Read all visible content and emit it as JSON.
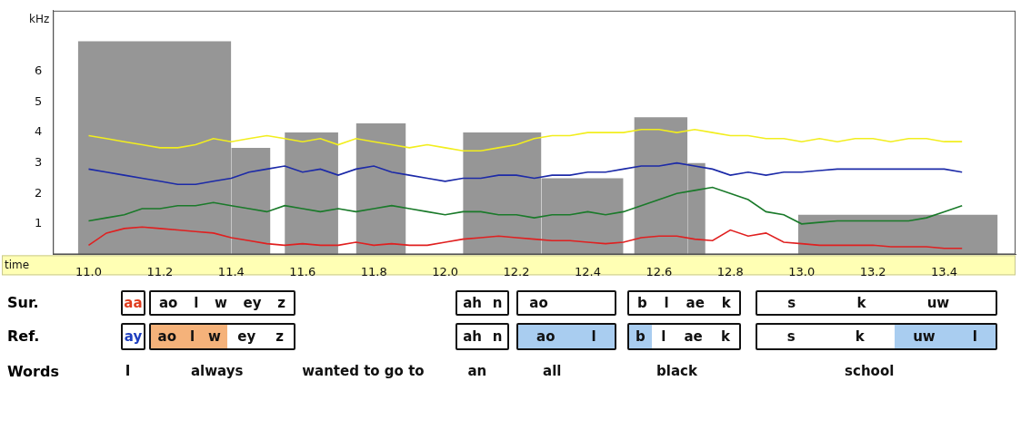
{
  "chart_data": {
    "type": "line",
    "y_label": "kHz",
    "x_label": "time",
    "xlim": [
      10.9,
      13.6
    ],
    "xticks": [
      {
        "value": 11.0,
        "label": "11.0"
      },
      11.2,
      11.4,
      11.6,
      11.8,
      {
        "value": 12.0,
        "label": "12.0"
      },
      12.2,
      12.4,
      12.6,
      12.8,
      {
        "value": 13.0,
        "label": "13.0"
      },
      13.2,
      13.4
    ],
    "ylim": [
      0,
      8
    ],
    "yticks": [
      1,
      2,
      3,
      4,
      5,
      6
    ],
    "grid": false,
    "x": [
      11.0,
      11.05,
      11.1,
      11.15,
      11.2,
      11.25,
      11.3,
      11.35,
      11.4,
      11.45,
      11.5,
      11.55,
      11.6,
      11.65,
      11.7,
      11.75,
      11.8,
      11.85,
      11.9,
      11.95,
      12.0,
      12.05,
      12.1,
      12.15,
      12.2,
      12.25,
      12.3,
      12.35,
      12.4,
      12.45,
      12.5,
      12.55,
      12.6,
      12.65,
      12.7,
      12.75,
      12.8,
      12.85,
      12.9,
      12.95,
      13.0,
      13.05,
      13.1,
      13.15,
      13.2,
      13.25,
      13.3,
      13.35,
      13.4,
      13.45
    ],
    "series": [
      {
        "color": "#e02020",
        "values": [
          0.3,
          0.7,
          0.85,
          0.9,
          0.85,
          0.8,
          0.75,
          0.7,
          0.55,
          0.45,
          0.35,
          0.3,
          0.35,
          0.3,
          0.3,
          0.4,
          0.3,
          0.35,
          0.3,
          0.3,
          0.4,
          0.5,
          0.55,
          0.6,
          0.55,
          0.5,
          0.45,
          0.45,
          0.4,
          0.35,
          0.4,
          0.55,
          0.6,
          0.6,
          0.5,
          0.45,
          0.8,
          0.6,
          0.7,
          0.4,
          0.35,
          0.3,
          0.3,
          0.3,
          0.3,
          0.25,
          0.25,
          0.25,
          0.2,
          0.2
        ]
      },
      {
        "color": "#1a7a2a",
        "values": [
          1.1,
          1.2,
          1.3,
          1.5,
          1.5,
          1.6,
          1.6,
          1.7,
          1.6,
          1.5,
          1.4,
          1.6,
          1.5,
          1.4,
          1.5,
          1.4,
          1.5,
          1.6,
          1.5,
          1.4,
          1.3,
          1.4,
          1.4,
          1.3,
          1.3,
          1.2,
          1.3,
          1.3,
          1.4,
          1.3,
          1.4,
          1.6,
          1.8,
          2.0,
          2.1,
          2.2,
          2.0,
          1.8,
          1.4,
          1.3,
          1.0,
          1.05,
          1.1,
          1.1,
          1.1,
          1.1,
          1.1,
          1.2,
          1.4,
          1.6
        ]
      },
      {
        "color": "#1c2aa8",
        "values": [
          2.8,
          2.7,
          2.6,
          2.5,
          2.4,
          2.3,
          2.3,
          2.4,
          2.5,
          2.7,
          2.8,
          2.9,
          2.7,
          2.8,
          2.6,
          2.8,
          2.9,
          2.7,
          2.6,
          2.5,
          2.4,
          2.5,
          2.5,
          2.6,
          2.6,
          2.5,
          2.6,
          2.6,
          2.7,
          2.7,
          2.8,
          2.9,
          2.9,
          3.0,
          2.9,
          2.8,
          2.6,
          2.7,
          2.6,
          2.7,
          2.7,
          2.75,
          2.8,
          2.8,
          2.8,
          2.8,
          2.8,
          2.8,
          2.8,
          2.7
        ]
      },
      {
        "color": "#f2ee1e",
        "values": [
          3.9,
          3.8,
          3.7,
          3.6,
          3.5,
          3.5,
          3.6,
          3.8,
          3.7,
          3.8,
          3.9,
          3.8,
          3.7,
          3.8,
          3.6,
          3.8,
          3.7,
          3.6,
          3.5,
          3.6,
          3.5,
          3.4,
          3.4,
          3.5,
          3.6,
          3.8,
          3.9,
          3.9,
          4.0,
          4.0,
          4.0,
          4.1,
          4.1,
          4.0,
          4.1,
          4.0,
          3.9,
          3.9,
          3.8,
          3.8,
          3.7,
          3.8,
          3.7,
          3.8,
          3.8,
          3.7,
          3.8,
          3.8,
          3.7,
          3.7
        ]
      }
    ],
    "spectrogram_energy": [
      {
        "start": 10.97,
        "end": 11.4,
        "top": 7.0
      },
      {
        "start": 11.4,
        "end": 11.51,
        "top": 3.5
      },
      {
        "start": 11.55,
        "end": 11.7,
        "top": 4.0
      },
      {
        "start": 11.75,
        "end": 11.89,
        "top": 4.3
      },
      {
        "start": 12.05,
        "end": 12.27,
        "top": 4.0
      },
      {
        "start": 12.27,
        "end": 12.5,
        "top": 2.5
      },
      {
        "start": 12.53,
        "end": 12.68,
        "top": 4.5
      },
      {
        "start": 12.68,
        "end": 12.73,
        "top": 3.0
      },
      {
        "start": 12.99,
        "end": 13.55,
        "top": 1.3
      }
    ]
  },
  "alignment": {
    "rows": [
      {
        "label": "Sur.",
        "boxes": [
          {
            "start": 11.09,
            "end": 11.16,
            "segments": [
              {
                "start": 11.09,
                "end": 11.16,
                "text": "aa",
                "color": "#e03c1e"
              }
            ]
          },
          {
            "start": 11.17,
            "end": 11.58,
            "segments": [
              {
                "start": 11.17,
                "end": 11.58,
                "text": "ao l w ey z"
              }
            ]
          },
          {
            "start": 12.03,
            "end": 12.18,
            "segments": [
              {
                "start": 12.03,
                "end": 12.18,
                "text": "ah n"
              }
            ]
          },
          {
            "start": 12.2,
            "end": 12.48,
            "segments": [
              {
                "start": 12.2,
                "end": 12.32,
                "text": "ao"
              }
            ]
          },
          {
            "start": 12.51,
            "end": 12.83,
            "segments": [
              {
                "start": 12.51,
                "end": 12.83,
                "text": "b l ae k"
              }
            ]
          },
          {
            "start": 12.87,
            "end": 13.55,
            "segments": [
              {
                "start": 12.87,
                "end": 13.5,
                "text": "s k uw"
              }
            ]
          }
        ]
      },
      {
        "label": "Ref.",
        "boxes": [
          {
            "start": 11.09,
            "end": 11.16,
            "segments": [
              {
                "start": 11.09,
                "end": 11.16,
                "text": "ay",
                "color": "#1f3fbf"
              }
            ]
          },
          {
            "start": 11.17,
            "end": 11.58,
            "segments": [
              {
                "start": 11.17,
                "end": 11.39,
                "text": "ao l w",
                "highlight": "#f5b27a"
              },
              {
                "start": 11.39,
                "end": 11.58,
                "text": "ey z"
              }
            ]
          },
          {
            "start": 12.03,
            "end": 12.18,
            "segments": [
              {
                "start": 12.03,
                "end": 12.18,
                "text": "ah n"
              }
            ]
          },
          {
            "start": 12.2,
            "end": 12.48,
            "segments": [
              {
                "start": 12.2,
                "end": 12.48,
                "text": "ao l",
                "highlight": "#a9cdf0"
              }
            ]
          },
          {
            "start": 12.51,
            "end": 12.83,
            "segments": [
              {
                "start": 12.51,
                "end": 12.58,
                "text": "b",
                "highlight": "#a9cdf0"
              },
              {
                "start": 12.58,
                "end": 12.83,
                "text": "l ae k"
              }
            ]
          },
          {
            "start": 12.87,
            "end": 13.55,
            "segments": [
              {
                "start": 12.87,
                "end": 13.26,
                "text": "s k"
              },
              {
                "start": 13.26,
                "end": 13.55,
                "text": "uw l",
                "highlight": "#a9cdf0"
              }
            ]
          }
        ]
      }
    ],
    "words_label": "Words",
    "words": [
      {
        "text": "I",
        "time": 11.11
      },
      {
        "text": "always",
        "time": 11.36
      },
      {
        "text": "wanted to go to",
        "time": 11.77
      },
      {
        "text": "an",
        "time": 12.09
      },
      {
        "text": "all",
        "time": 12.3
      },
      {
        "text": "black",
        "time": 12.65
      },
      {
        "text": "school",
        "time": 13.19
      }
    ]
  }
}
